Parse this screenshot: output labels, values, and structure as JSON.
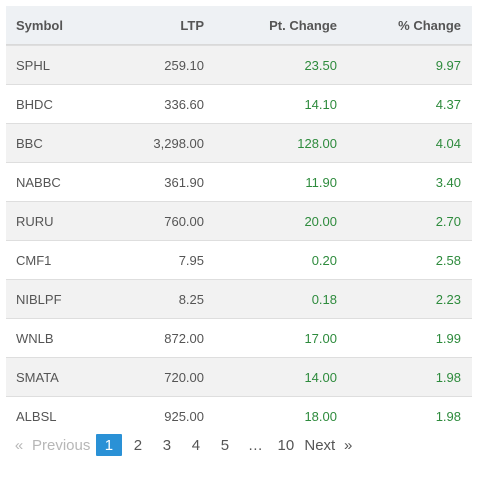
{
  "table": {
    "headers": {
      "symbol": "Symbol",
      "ltp": "LTP",
      "pt_change": "Pt. Change",
      "pct_change": "% Change"
    },
    "rows": [
      {
        "symbol": "SPHL",
        "ltp": "259.10",
        "pt_change": "23.50",
        "pct_change": "9.97"
      },
      {
        "symbol": "BHDC",
        "ltp": "336.60",
        "pt_change": "14.10",
        "pct_change": "4.37"
      },
      {
        "symbol": "BBC",
        "ltp": "3,298.00",
        "pt_change": "128.00",
        "pct_change": "4.04"
      },
      {
        "symbol": "NABBC",
        "ltp": "361.90",
        "pt_change": "11.90",
        "pct_change": "3.40"
      },
      {
        "symbol": "RURU",
        "ltp": "760.00",
        "pt_change": "20.00",
        "pct_change": "2.70"
      },
      {
        "symbol": "CMF1",
        "ltp": "7.95",
        "pt_change": "0.20",
        "pct_change": "2.58"
      },
      {
        "symbol": "NIBLPF",
        "ltp": "8.25",
        "pt_change": "0.18",
        "pct_change": "2.23"
      },
      {
        "symbol": "WNLB",
        "ltp": "872.00",
        "pt_change": "17.00",
        "pct_change": "1.99"
      },
      {
        "symbol": "SMATA",
        "ltp": "720.00",
        "pt_change": "14.00",
        "pct_change": "1.98"
      },
      {
        "symbol": "ALBSL",
        "ltp": "925.00",
        "pt_change": "18.00",
        "pct_change": "1.98"
      }
    ],
    "positive_color": "#2e8b3d",
    "stripe_color": "#f2f2f2",
    "header_background": "#eef1f4"
  },
  "pagination": {
    "first_arrow": "«",
    "previous_label": "Previous",
    "pages": [
      "1",
      "2",
      "3",
      "4",
      "5"
    ],
    "ellipsis": "…",
    "last_page": "10",
    "next_label": "Next",
    "next_arrow": "»",
    "current_page": "1",
    "active_color": "#2a91d6"
  }
}
